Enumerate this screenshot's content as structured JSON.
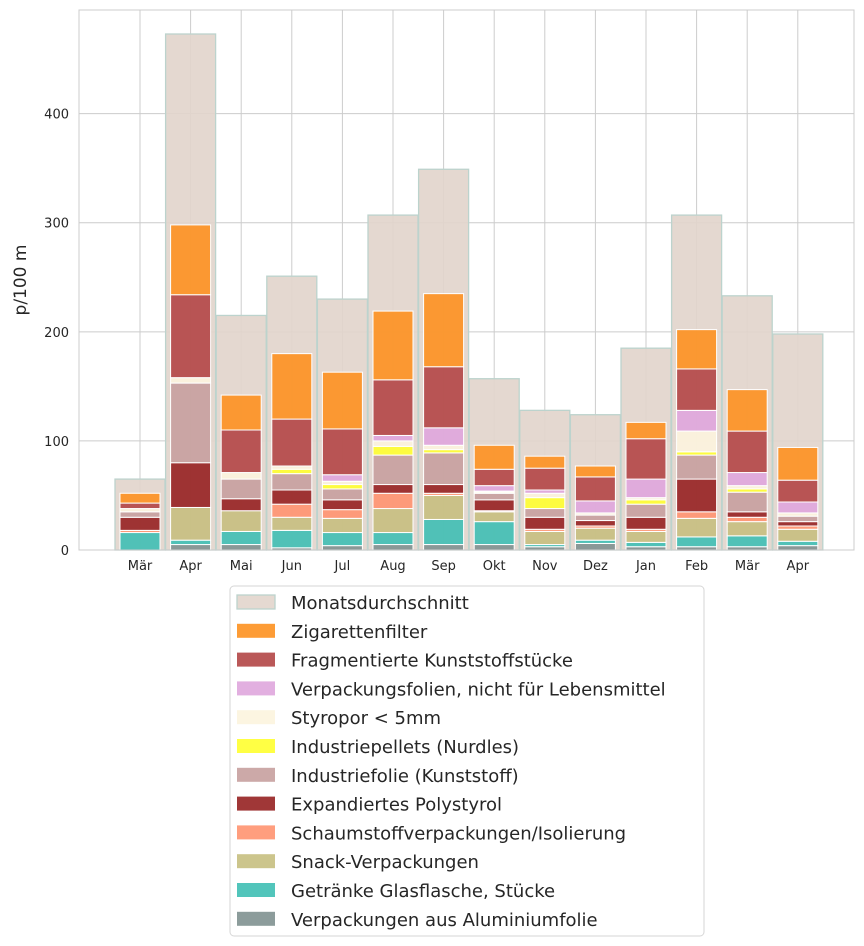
{
  "chart_data": {
    "type": "bar",
    "stacked": true,
    "ylabel": "p/100 m",
    "xlabel": "",
    "ylim": [
      0,
      495
    ],
    "yticks": [
      0,
      100,
      200,
      300,
      400
    ],
    "grid": true,
    "legend_position": "bottom",
    "categories": [
      "Mär",
      "Apr",
      "Mai",
      "Jun",
      "Jul",
      "Aug",
      "Sep",
      "Okt",
      "Nov",
      "Dez",
      "Jan",
      "Feb",
      "Mär",
      "Apr"
    ],
    "background_series": {
      "name": "Monatsdurchschnitt",
      "color": "#e2d5cc",
      "edge": "#bcd3cd",
      "values": [
        65,
        473,
        215,
        251,
        230,
        307,
        349,
        157,
        128,
        124,
        185,
        307,
        233,
        198
      ]
    },
    "series": [
      {
        "name": "Verpackungen aus Aluminiumfolie",
        "color": "#7f9190",
        "values": [
          0,
          5,
          5,
          2,
          4,
          5,
          5,
          5,
          3,
          6,
          3,
          3,
          3,
          4
        ]
      },
      {
        "name": "Getränke Glasflasche, Stücke",
        "color": "#3fbfb4",
        "values": [
          16,
          4,
          12,
          16,
          12,
          11,
          23,
          21,
          2,
          3,
          4,
          9,
          10,
          4
        ]
      },
      {
        "name": "Snack-Verpackungen",
        "color": "#c6bf80",
        "values": [
          0,
          30,
          19,
          12,
          13,
          22,
          22,
          9,
          12,
          11,
          10,
          17,
          13,
          11
        ]
      },
      {
        "name": "Schaumstoffverpackungen/Isolierung",
        "color": "#ff9370",
        "values": [
          2,
          0,
          0,
          12,
          8,
          14,
          2,
          1,
          2,
          2,
          2,
          6,
          4,
          3
        ]
      },
      {
        "name": "Expandiertes Polystyrol",
        "color": "#962121",
        "values": [
          12,
          41,
          11,
          13,
          9,
          8,
          8,
          10,
          11,
          5,
          11,
          30,
          5,
          4
        ]
      },
      {
        "name": "Industriefolie (Kunststoff)",
        "color": "#c7a09f",
        "values": [
          5,
          73,
          18,
          15,
          10,
          27,
          29,
          6,
          8,
          5,
          12,
          22,
          18,
          5
        ]
      },
      {
        "name": "Industriepellets (Nurdles)",
        "color": "#ffff30",
        "values": [
          0,
          0,
          0,
          4,
          4,
          8,
          3,
          1,
          10,
          0,
          4,
          3,
          3,
          0
        ]
      },
      {
        "name": "Styropor < 5mm",
        "color": "#fcf4de",
        "values": [
          3,
          5,
          6,
          3,
          3,
          5,
          4,
          1,
          4,
          2,
          2,
          19,
          3,
          3
        ]
      },
      {
        "name": "Verpackungsfolien, nicht für Lebensmittel",
        "color": "#dfa6dd",
        "values": [
          0,
          0,
          0,
          0,
          6,
          5,
          16,
          5,
          3,
          11,
          17,
          19,
          12,
          10
        ]
      },
      {
        "name": "Fragmentierte Kunststoffstücke",
        "color": "#b24646",
        "values": [
          5,
          76,
          39,
          43,
          42,
          51,
          56,
          15,
          20,
          22,
          37,
          38,
          38,
          20
        ]
      },
      {
        "name": "Zigarettenfilter",
        "color": "#fd9120",
        "values": [
          9,
          64,
          32,
          60,
          52,
          63,
          67,
          22,
          11,
          10,
          15,
          36,
          38,
          30
        ]
      }
    ]
  }
}
